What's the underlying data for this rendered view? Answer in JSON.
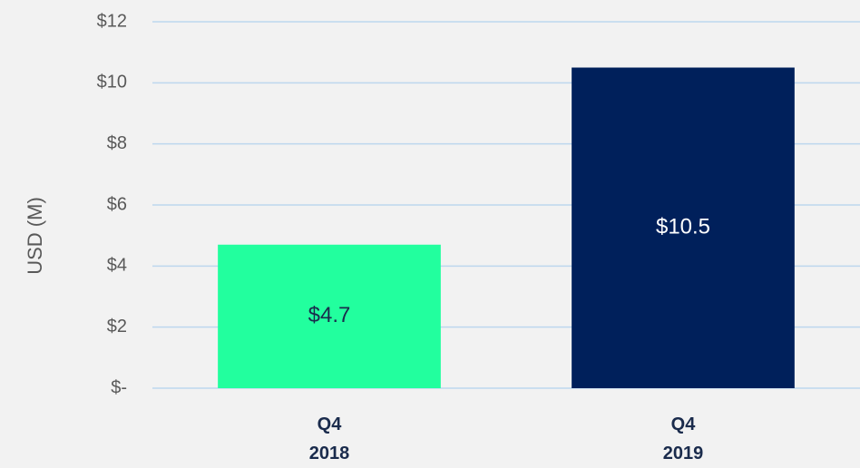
{
  "chart_data": {
    "type": "bar",
    "y_label": "USD (M)",
    "categories": [
      "Q4\n2018",
      "Q4\n2019"
    ],
    "values": [
      4.7,
      10.5
    ],
    "value_labels": [
      "$4.7",
      "$10.5"
    ],
    "colors": [
      "#22ff9e",
      "#00205b"
    ],
    "ylim": [
      0,
      12
    ],
    "yticks": [
      {
        "value": 0,
        "label": "$-"
      },
      {
        "value": 2,
        "label": "$2"
      },
      {
        "value": 4,
        "label": "$4"
      },
      {
        "value": 6,
        "label": "$6"
      },
      {
        "value": 8,
        "label": "$8"
      },
      {
        "value": 10,
        "label": "$10"
      },
      {
        "value": 12,
        "label": "$12"
      }
    ],
    "grid": true
  }
}
